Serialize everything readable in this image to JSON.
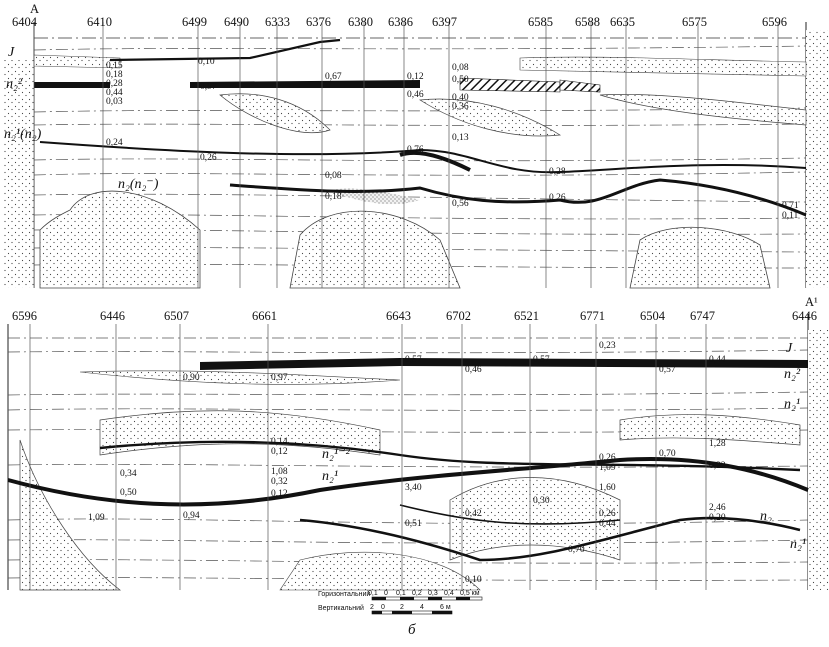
{
  "section_top": {
    "start_label": "A",
    "wells": [
      "6404",
      "6410",
      "6499",
      "6490",
      "6333",
      "6376",
      "6380",
      "6386",
      "6397",
      "6585",
      "6588",
      "6635",
      "6575",
      "6596"
    ],
    "strata_labels": [
      "J",
      "n₂²",
      "n₂¹(n₂)",
      "n₂(n₂⁻)"
    ],
    "thickness_values": [
      "0,10",
      "0,15",
      "0,18",
      "0,28",
      "0,44",
      "0,03",
      "0,97",
      "0,67",
      "0,12",
      "0,08",
      "0,50",
      "0,46",
      "0,40",
      "0,36",
      "0,24",
      "0,26",
      "0,76",
      "0,13",
      "0,08",
      "0,28",
      "0,56",
      "0,18",
      "0,26",
      "0,71",
      "0,11"
    ]
  },
  "section_bottom": {
    "end_label": "A¹",
    "wells": [
      "6596",
      "6446",
      "6507",
      "6661",
      "6643",
      "6702",
      "6521",
      "6771",
      "6504",
      "6747",
      "6446"
    ],
    "strata_labels": [
      "J",
      "n₂²",
      "n₂¹",
      "n₂¹⁻²",
      "n₂¹",
      "n₂",
      "n₂¹"
    ],
    "thickness_values": [
      "0,90",
      "0,97",
      "0,57",
      "0,46",
      "0,57",
      "0,23",
      "0,44",
      "0,57",
      "0,14",
      "0,12",
      "1,08",
      "0,32",
      "0,12",
      "0,26",
      "1,09",
      "1,60",
      "0,30",
      "0,70",
      "1,28",
      "0,22",
      "2,46",
      "0,20",
      "0,94",
      "1,09",
      "0,34",
      "0,50",
      "3,40",
      "0,51",
      "0,42",
      "0,10",
      "0,26",
      "0,44",
      "0,70"
    ]
  },
  "scale": {
    "horizontal_label": "Горизонтальний",
    "horizontal_ticks": [
      "0,1",
      "0",
      "0,1",
      "0,2",
      "0,3",
      "0,4",
      "0,5 км"
    ],
    "vertical_label": "Вертикальний",
    "vertical_ticks": [
      "2",
      "0",
      "2",
      "4",
      "6 м"
    ]
  },
  "caption": "б"
}
